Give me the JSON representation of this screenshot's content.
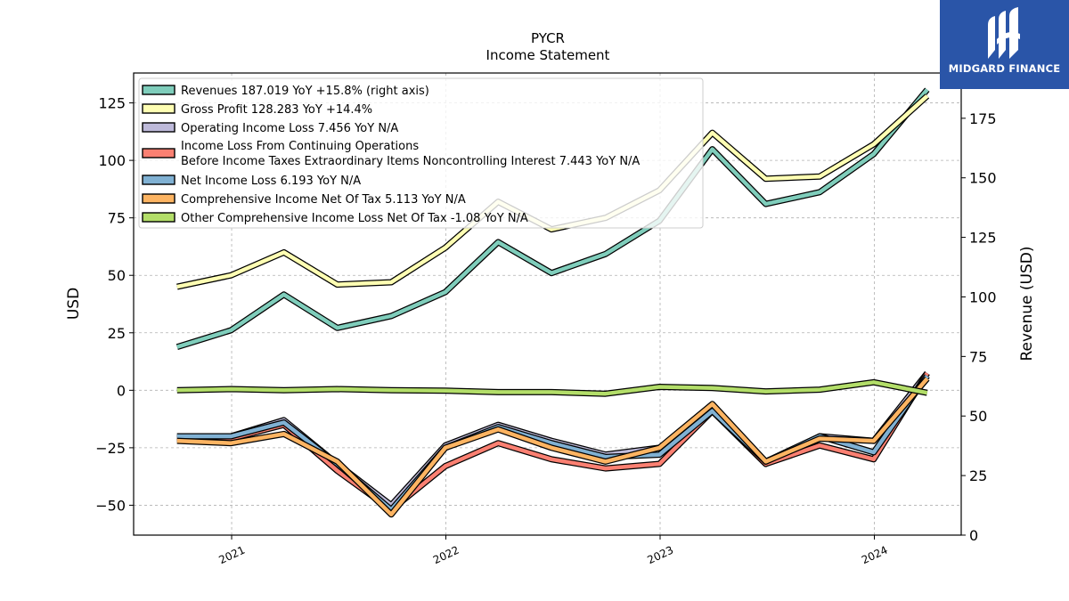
{
  "chart_data": {
    "type": "line",
    "title": "PYCR",
    "subtitle": "Income Statement",
    "ylabel": "USD",
    "y2label": "Revenue (USD)",
    "ylim": [
      -63,
      138
    ],
    "y2lim": [
      0,
      194
    ],
    "yticks": [
      -50,
      -25,
      0,
      25,
      50,
      75,
      100,
      125
    ],
    "y2ticks": [
      0,
      25,
      50,
      75,
      100,
      125,
      150,
      175
    ],
    "xlim": [
      "2020-07-18",
      "2024-05-28"
    ],
    "xticks": [
      "2021-01-01",
      "2022-01-01",
      "2023-01-01",
      "2024-01-01"
    ],
    "xticklabels": [
      "2021",
      "2022",
      "2023",
      "2024"
    ],
    "grid": true,
    "legend_position": "top-left",
    "x": [
      "2020-09-30",
      "2020-12-31",
      "2021-03-31",
      "2021-06-30",
      "2021-09-30",
      "2021-12-31",
      "2022-03-31",
      "2022-06-30",
      "2022-09-30",
      "2022-12-31",
      "2023-03-31",
      "2023-06-30",
      "2023-09-30",
      "2023-12-31",
      "2024-03-31"
    ],
    "series": [
      {
        "name": "Revenues",
        "legend": "Revenues  187.019 YoY +15.8% (right axis)",
        "axis": "right",
        "color": "#7fcdbb",
        "values": [
          79,
          86,
          101,
          87,
          92,
          102,
          123,
          110,
          118,
          132,
          162,
          139,
          144,
          160,
          187
        ]
      },
      {
        "name": "Gross Profit",
        "legend": "Gross Profit  128.283 YoY +14.4%",
        "axis": "left",
        "color": "#ffffb3",
        "values": [
          45,
          50,
          60,
          46,
          47,
          62,
          82,
          70,
          75,
          87,
          112,
          92,
          93,
          107,
          128
        ]
      },
      {
        "name": "Operating Income Loss",
        "legend": "Operating Income Loss  7.456 YoY N/A",
        "axis": "left",
        "color": "#bebada",
        "values": [
          -20,
          -20,
          -13,
          -32,
          -50,
          -24,
          -15,
          -22,
          -28,
          -25,
          -9,
          -32,
          -20,
          -22,
          7.5
        ]
      },
      {
        "name": "Income Loss From Continuing Operations Before Income Taxes Extraordinary Items Noncontrolling Interest",
        "legend": [
          "Income Loss From Continuing Operations",
          "Before Income Taxes Extraordinary Items Noncontrolling Interest  7.443 YoY N/A"
        ],
        "axis": "left",
        "color": "#fb8072",
        "values": [
          -21,
          -21,
          -15,
          -35,
          -52,
          -33,
          -23,
          -30,
          -34,
          -32,
          -9,
          -32,
          -24,
          -30,
          7.4
        ]
      },
      {
        "name": "Net Income Loss",
        "legend": "Net Income Loss  6.193 YoY N/A",
        "axis": "left",
        "color": "#80b1d3",
        "values": [
          -20,
          -20,
          -14,
          -32,
          -52,
          -25,
          -16,
          -23,
          -29,
          -28,
          -9,
          -31,
          -20,
          -27,
          6.2
        ]
      },
      {
        "name": "Comprehensive Income Net Of Tax",
        "legend": "Comprehensive Income Net Of Tax  5.113 YoY N/A",
        "axis": "left",
        "color": "#fdb462",
        "values": [
          -22,
          -23,
          -19,
          -31,
          -54,
          -25,
          -17,
          -25,
          -31,
          -25,
          -6,
          -31,
          -21,
          -22,
          5.1
        ]
      },
      {
        "name": "Other Comprehensive Income Loss Net Of Tax",
        "legend": "Other Comprehensive Income Loss Net Of Tax  -1.08 YoY N/A",
        "axis": "left",
        "color": "#b3de69",
        "values": [
          0,
          0.5,
          0,
          0.5,
          0,
          -0.2,
          -0.8,
          -0.8,
          -1.5,
          1.5,
          1,
          -0.5,
          0.3,
          3.5,
          -1.1
        ]
      }
    ]
  },
  "logo": {
    "text": "MIDGARD FINANCE"
  }
}
